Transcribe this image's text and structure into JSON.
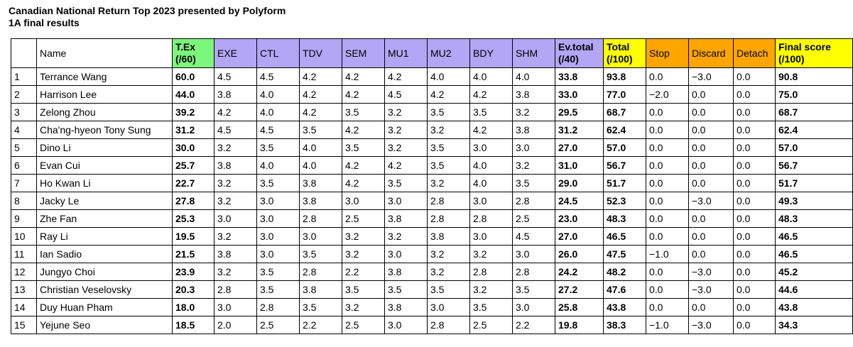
{
  "title": "Canadian National Return Top 2023 presented by Polyform",
  "subtitle": "1A final results",
  "colors": {
    "texHeader": "#7CF67C",
    "judgeHeader": "#B3A6F5",
    "totalHeader": "#FFFF00",
    "penaltyHeader": "#FFA500"
  },
  "headers": {
    "rank": "",
    "name": "Name",
    "tex": [
      "T.Ex",
      "(/60)"
    ],
    "exe": "EXE",
    "ctl": "CTL",
    "tdv": "TDV",
    "sem": "SEM",
    "mu1": "MU1",
    "mu2": "MU2",
    "bdy": "BDY",
    "shm": "SHM",
    "ev": [
      "Ev.total",
      "(/40)"
    ],
    "total": [
      "Total",
      "(/100)"
    ],
    "stop": "Stop",
    "discard": "Discard",
    "detach": "Detach",
    "final": [
      "Final score",
      "(/100)"
    ]
  },
  "rows": [
    {
      "rank": "1",
      "name": "Terrance Wang",
      "tex": "60.0",
      "exe": "4.5",
      "ctl": "4.5",
      "tdv": "4.2",
      "sem": "4.2",
      "mu1": "4.2",
      "mu2": "4.0",
      "bdy": "4.0",
      "shm": "4.0",
      "ev": "33.8",
      "total": "93.8",
      "stop": "0.0",
      "discard": "−3.0",
      "detach": "0.0",
      "final": "90.8"
    },
    {
      "rank": "2",
      "name": "Harrison Lee",
      "tex": "44.0",
      "exe": "3.8",
      "ctl": "4.0",
      "tdv": "4.2",
      "sem": "4.2",
      "mu1": "4.5",
      "mu2": "4.2",
      "bdy": "4.2",
      "shm": "3.8",
      "ev": "33.0",
      "total": "77.0",
      "stop": "−2.0",
      "discard": "0.0",
      "detach": "0.0",
      "final": "75.0"
    },
    {
      "rank": "3",
      "name": "Zelong Zhou",
      "tex": "39.2",
      "exe": "4.2",
      "ctl": "4.0",
      "tdv": "4.2",
      "sem": "3.5",
      "mu1": "3.2",
      "mu2": "3.5",
      "bdy": "3.5",
      "shm": "3.2",
      "ev": "29.5",
      "total": "68.7",
      "stop": "0.0",
      "discard": "0.0",
      "detach": "0.0",
      "final": "68.7"
    },
    {
      "rank": "4",
      "name": "Cha'ng-hyeon Tony Sung",
      "tex": "31.2",
      "exe": "4.5",
      "ctl": "4.5",
      "tdv": "3.5",
      "sem": "4.2",
      "mu1": "3.2",
      "mu2": "3.2",
      "bdy": "4.2",
      "shm": "3.8",
      "ev": "31.2",
      "total": "62.4",
      "stop": "0.0",
      "discard": "0.0",
      "detach": "0.0",
      "final": "62.4"
    },
    {
      "rank": "5",
      "name": "Dino Li",
      "tex": "30.0",
      "exe": "3.2",
      "ctl": "3.5",
      "tdv": "4.0",
      "sem": "3.5",
      "mu1": "3.2",
      "mu2": "3.5",
      "bdy": "3.0",
      "shm": "3.0",
      "ev": "27.0",
      "total": "57.0",
      "stop": "0.0",
      "discard": "0.0",
      "detach": "0.0",
      "final": "57.0"
    },
    {
      "rank": "6",
      "name": "Evan Cui",
      "tex": "25.7",
      "exe": "3.8",
      "ctl": "4.0",
      "tdv": "4.0",
      "sem": "4.2",
      "mu1": "4.2",
      "mu2": "3.5",
      "bdy": "4.0",
      "shm": "3.2",
      "ev": "31.0",
      "total": "56.7",
      "stop": "0.0",
      "discard": "0.0",
      "detach": "0.0",
      "final": "56.7"
    },
    {
      "rank": "7",
      "name": "Ho Kwan Li",
      "tex": "22.7",
      "exe": "3.2",
      "ctl": "3.5",
      "tdv": "3.8",
      "sem": "4.2",
      "mu1": "3.5",
      "mu2": "3.2",
      "bdy": "4.0",
      "shm": "3.5",
      "ev": "29.0",
      "total": "51.7",
      "stop": "0.0",
      "discard": "0.0",
      "detach": "0.0",
      "final": "51.7"
    },
    {
      "rank": "8",
      "name": "Jacky Le",
      "tex": "27.8",
      "exe": "3.2",
      "ctl": "3.0",
      "tdv": "3.8",
      "sem": "3.0",
      "mu1": "3.0",
      "mu2": "2.8",
      "bdy": "3.0",
      "shm": "2.8",
      "ev": "24.5",
      "total": "52.3",
      "stop": "0.0",
      "discard": "−3.0",
      "detach": "0.0",
      "final": "49.3"
    },
    {
      "rank": "9",
      "name": "Zhe Fan",
      "tex": "25.3",
      "exe": "3.0",
      "ctl": "3.0",
      "tdv": "2.8",
      "sem": "2.5",
      "mu1": "3.8",
      "mu2": "2.8",
      "bdy": "2.8",
      "shm": "2.5",
      "ev": "23.0",
      "total": "48.3",
      "stop": "0.0",
      "discard": "0.0",
      "detach": "0.0",
      "final": "48.3"
    },
    {
      "rank": "10",
      "name": "Ray Li",
      "tex": "19.5",
      "exe": "3.2",
      "ctl": "3.0",
      "tdv": "3.0",
      "sem": "3.2",
      "mu1": "3.2",
      "mu2": "3.8",
      "bdy": "3.0",
      "shm": "4.5",
      "ev": "27.0",
      "total": "46.5",
      "stop": "0.0",
      "discard": "0.0",
      "detach": "0.0",
      "final": "46.5"
    },
    {
      "rank": "11",
      "name": "Ian Sadio",
      "tex": "21.5",
      "exe": "3.8",
      "ctl": "3.0",
      "tdv": "3.5",
      "sem": "3.2",
      "mu1": "3.0",
      "mu2": "3.2",
      "bdy": "3.2",
      "shm": "3.0",
      "ev": "26.0",
      "total": "47.5",
      "stop": "−1.0",
      "discard": "0.0",
      "detach": "0.0",
      "final": "46.5"
    },
    {
      "rank": "12",
      "name": "Jungyo Choi",
      "tex": "23.9",
      "exe": "3.2",
      "ctl": "3.5",
      "tdv": "2.8",
      "sem": "2.2",
      "mu1": "3.8",
      "mu2": "3.2",
      "bdy": "2.8",
      "shm": "2.8",
      "ev": "24.2",
      "total": "48.2",
      "stop": "0.0",
      "discard": "−3.0",
      "detach": "0.0",
      "final": "45.2"
    },
    {
      "rank": "13",
      "name": "Christian Veselovsky",
      "tex": "20.3",
      "exe": "2.8",
      "ctl": "3.5",
      "tdv": "3.8",
      "sem": "3.5",
      "mu1": "3.5",
      "mu2": "3.5",
      "bdy": "3.2",
      "shm": "3.5",
      "ev": "27.2",
      "total": "47.6",
      "stop": "0.0",
      "discard": "−3.0",
      "detach": "0.0",
      "final": "44.6"
    },
    {
      "rank": "14",
      "name": "Duy Huan Pham",
      "tex": "18.0",
      "exe": "3.0",
      "ctl": "2.8",
      "tdv": "3.5",
      "sem": "3.2",
      "mu1": "3.8",
      "mu2": "3.0",
      "bdy": "3.5",
      "shm": "3.0",
      "ev": "25.8",
      "total": "43.8",
      "stop": "0.0",
      "discard": "0.0",
      "detach": "0.0",
      "final": "43.8"
    },
    {
      "rank": "15",
      "name": "Yejune Seo",
      "tex": "18.5",
      "exe": "2.0",
      "ctl": "2.5",
      "tdv": "2.2",
      "sem": "2.5",
      "mu1": "3.0",
      "mu2": "2.8",
      "bdy": "2.5",
      "shm": "2.2",
      "ev": "19.8",
      "total": "38.3",
      "stop": "−1.0",
      "discard": "−3.0",
      "detach": "0.0",
      "final": "34.3"
    }
  ]
}
